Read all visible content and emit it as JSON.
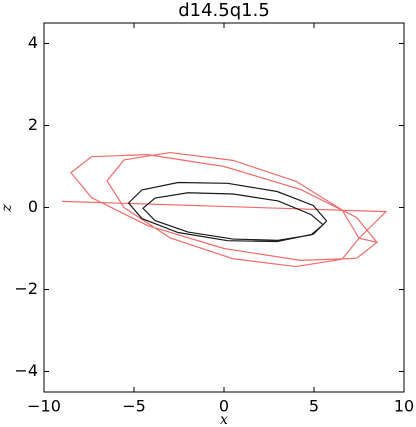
{
  "chart_data": {
    "type": "line",
    "title": "d14.5q1.5",
    "x_label": "x",
    "y_label": "z",
    "xlim": [
      -10,
      10
    ],
    "ylim": [
      -4.5,
      4.5
    ],
    "xticks": [
      {
        "value": -10,
        "label": "−10"
      },
      {
        "value": -5,
        "label": "−5"
      },
      0,
      5,
      10
    ],
    "yticks": [
      {
        "value": -4,
        "label": "−4"
      },
      {
        "value": -2,
        "label": "−2"
      },
      0,
      2,
      4
    ],
    "grid": false,
    "series": [
      {
        "color": "#f05a5a",
        "x": [
          8.5,
          7.36,
          4.25,
          0,
          -4.25,
          -7.36,
          -8.5,
          -7.36,
          -4.25,
          0,
          4.25,
          7.36,
          8.5,
          7.5,
          6.56,
          4.0,
          0.5,
          -3.0,
          -5.56,
          -6.5,
          -5.56,
          -3.0,
          0.5,
          4.0,
          6.56,
          7.5,
          9.0,
          -9.0
        ],
        "values": [
          -0.85,
          -0.24,
          0.44,
          1.0,
          1.29,
          1.24,
          0.85,
          0.24,
          -0.44,
          -1.0,
          -1.29,
          -1.24,
          -0.85,
          -0.75,
          -0.06,
          0.64,
          1.15,
          1.34,
          1.16,
          0.65,
          0.0,
          -0.74,
          -1.25,
          -1.44,
          -1.26,
          -0.75,
          -0.1,
          0.15
        ]
      },
      {
        "color": "#000000",
        "x": [
          5.7,
          4.96,
          2.95,
          0.2,
          -2.55,
          -4.56,
          -5.3,
          -4.56,
          -2.55,
          0.2,
          2.95,
          4.96,
          5.7,
          5.5,
          4.83,
          3.0,
          0.5,
          -2.0,
          -3.83,
          -4.5,
          -3.83,
          -2.0,
          0.5,
          3.0,
          4.83,
          5.5
        ],
        "values": [
          -0.33,
          0.05,
          0.39,
          0.59,
          0.61,
          0.43,
          0.11,
          -0.27,
          -0.61,
          -0.81,
          -0.83,
          -0.65,
          -0.33,
          -0.42,
          -0.17,
          0.16,
          0.33,
          0.36,
          0.23,
          -0.02,
          -0.32,
          -0.6,
          -0.77,
          -0.8,
          -0.67,
          -0.42
        ]
      }
    ]
  }
}
